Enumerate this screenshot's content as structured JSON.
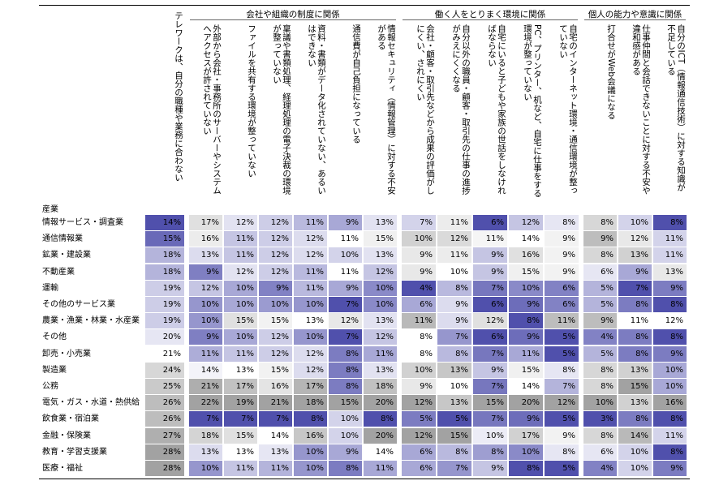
{
  "header": {
    "row_label": "産業",
    "first_column": "テレワークは、自分の職種や業務に合わない",
    "groups": [
      {
        "label": "会社や組織の制度に関係",
        "columns": [
          "外部から会社・事務所のサーバーやシステムへアクセスが許されていない",
          "ファイルを共有する環境が整っていない",
          "稟議や書類処理、経理処理の電子決裁の環境が整っていない",
          "資料・書類がデータ化されていない、あるいはできない",
          "通信費が自己負担になっている",
          "情報セキュリティ（情報管理）に対する不安がある"
        ]
      },
      {
        "label": "働く人をとりまく環境に関係",
        "columns": [
          "会社・顧客・取引先などから成果の評価がしにくい、されにくい",
          "自分以外の職員・顧客・取引先の仕事の進捗がみえにくくなる",
          "自宅にいると子どもや家族の世話をしなければならない",
          "PC、プリンター、机など、自宅に仕事をする環境が整っていない",
          "自宅のインターネット環境・通信環境が整っていない"
        ]
      },
      {
        "label": "個人の能力や意識に関係",
        "columns": [
          "打合せがWeb会議になる",
          "仕事仲間と会話できないことに対する不安や違和感がある",
          "自分のICT（情報通信技術）に対する知識が不足している"
        ]
      }
    ]
  },
  "color_scale": {
    "low": "#5050ac",
    "mid": "#ffffff",
    "high": "#a2a2a2"
  },
  "table": {
    "rows": [
      {
        "label": "情報サービス・調査業",
        "values": [
          14,
          17,
          12,
          12,
          11,
          9,
          13,
          7,
          11,
          6,
          12,
          8,
          8,
          10,
          8
        ],
        "value_labels": [
          "14%",
          "17%",
          "12%",
          "12%",
          "11%",
          "9%",
          "13%",
          "7%",
          "11%",
          "6%",
          "12%",
          "8%",
          "8%",
          "10%",
          "8%"
        ]
      },
      {
        "label": "通信情報業",
        "values": [
          15,
          16,
          11,
          12,
          12,
          11,
          15,
          10,
          12,
          11,
          14,
          9,
          9,
          12,
          11
        ],
        "value_labels": [
          "15%",
          "16%",
          "11%",
          "12%",
          "12%",
          "11%",
          "15%",
          "10%",
          "12%",
          "11%",
          "14%",
          "9%",
          "9%",
          "12%",
          "11%"
        ]
      },
      {
        "label": "鉱業・建設業",
        "values": [
          18,
          13,
          11,
          12,
          12,
          10,
          13,
          9,
          11,
          9,
          16,
          9,
          8,
          13,
          11
        ],
        "value_labels": [
          "18%",
          "13%",
          "11%",
          "12%",
          "12%",
          "10%",
          "13%",
          "9%",
          "11%",
          "9%",
          "16%",
          "9%",
          "8%",
          "13%",
          "11%"
        ]
      },
      {
        "label": "不動産業",
        "values": [
          18,
          9,
          12,
          12,
          11,
          11,
          12,
          9,
          10,
          9,
          15,
          9,
          6,
          9,
          13
        ],
        "value_labels": [
          "18%",
          "9%",
          "12%",
          "12%",
          "11%",
          "11%",
          "12%",
          "9%",
          "10%",
          "9%",
          "15%",
          "9%",
          "6%",
          "9%",
          "13%"
        ]
      },
      {
        "label": "運輸",
        "values": [
          19,
          12,
          10,
          9,
          11,
          9,
          10,
          4,
          8,
          7,
          10,
          6,
          5,
          7,
          9
        ],
        "value_labels": [
          "19%",
          "12%",
          "10%",
          "9%",
          "11%",
          "9%",
          "10%",
          "4%",
          "8%",
          "7%",
          "10%",
          "6%",
          "5%",
          "7%",
          "9%"
        ]
      },
      {
        "label": "その他のサービス業",
        "values": [
          19,
          10,
          10,
          10,
          10,
          7,
          10,
          6,
          9,
          6,
          9,
          6,
          5,
          8,
          8
        ],
        "value_labels": [
          "19%",
          "10%",
          "10%",
          "10%",
          "10%",
          "7%",
          "10%",
          "6%",
          "9%",
          "6%",
          "9%",
          "6%",
          "5%",
          "8%",
          "8%"
        ]
      },
      {
        "label": "農業・漁業・林業・水産業",
        "values": [
          19,
          10,
          15,
          15,
          13,
          12,
          13,
          11,
          9,
          12,
          8,
          11,
          9,
          11,
          12
        ],
        "value_labels": [
          "19%",
          "10%",
          "15%",
          "15%",
          "13%",
          "12%",
          "13%",
          "11%",
          "9%",
          "12%",
          "8%",
          "11%",
          "9%",
          "11%",
          "12%"
        ]
      },
      {
        "label": "その他",
        "values": [
          20,
          9,
          10,
          12,
          10,
          7,
          12,
          8,
          7,
          6,
          9,
          5,
          4,
          8,
          8
        ],
        "value_labels": [
          "20%",
          "9%",
          "10%",
          "12%",
          "10%",
          "7%",
          "12%",
          "8%",
          "7%",
          "6%",
          "9%",
          "5%",
          "4%",
          "8%",
          "8%"
        ]
      },
      {
        "label": "卸売・小売業",
        "values": [
          21,
          11,
          11,
          12,
          12,
          8,
          11,
          8,
          8,
          7,
          11,
          5,
          5,
          8,
          9
        ],
        "value_labels": [
          "21%",
          "11%",
          "11%",
          "12%",
          "12%",
          "8%",
          "11%",
          "8%",
          "8%",
          "7%",
          "11%",
          "5%",
          "5%",
          "8%",
          "9%"
        ]
      },
      {
        "label": "製造業",
        "values": [
          24,
          14,
          13,
          15,
          12,
          8,
          13,
          10,
          13,
          9,
          15,
          8,
          8,
          13,
          10
        ],
        "value_labels": [
          "24%",
          "14%",
          "13%",
          "15%",
          "12%",
          "8%",
          "13%",
          "10%",
          "13%",
          "9%",
          "15%",
          "8%",
          "8%",
          "13%",
          "10%"
        ]
      },
      {
        "label": "公務",
        "values": [
          25,
          21,
          17,
          16,
          17,
          8,
          18,
          9,
          10,
          7,
          14,
          7,
          8,
          15,
          10
        ],
        "value_labels": [
          "25%",
          "21%",
          "17%",
          "16%",
          "17%",
          "8%",
          "18%",
          "9%",
          "10%",
          "7%",
          "14%",
          "7%",
          "8%",
          "15%",
          "10%"
        ]
      },
      {
        "label": "電気・ガス・水道・熱供給",
        "values": [
          26,
          22,
          19,
          21,
          18,
          15,
          20,
          12,
          13,
          15,
          20,
          12,
          10,
          13,
          16
        ],
        "value_labels": [
          "26%",
          "22%",
          "19%",
          "21%",
          "18%",
          "15%",
          "20%",
          "12%",
          "13%",
          "15%",
          "20%",
          "12%",
          "10%",
          "13%",
          "16%"
        ]
      },
      {
        "label": "飲食業・宿泊業",
        "values": [
          26,
          7,
          7,
          7,
          8,
          10,
          8,
          5,
          5,
          7,
          9,
          5,
          3,
          8,
          8
        ],
        "value_labels": [
          "26%",
          "7%",
          "7%",
          "7%",
          "8%",
          "10%",
          "8%",
          "5%",
          "5%",
          "7%",
          "9%",
          "5%",
          "3%",
          "8%",
          "8%"
        ]
      },
      {
        "label": "金融・保険業",
        "values": [
          27,
          18,
          15,
          14,
          16,
          10,
          20,
          12,
          15,
          10,
          17,
          9,
          8,
          14,
          11
        ],
        "value_labels": [
          "27%",
          "18%",
          "15%",
          "14%",
          "16%",
          "10%",
          "20%",
          "12%",
          "15%",
          "10%",
          "17%",
          "9%",
          "8%",
          "14%",
          "11%"
        ]
      },
      {
        "label": "教育・学習支援業",
        "values": [
          28,
          13,
          13,
          13,
          10,
          9,
          14,
          6,
          8,
          8,
          10,
          8,
          6,
          10,
          8
        ],
        "value_labels": [
          "28%",
          "13%",
          "13%",
          "13%",
          "10%",
          "9%",
          "14%",
          "6%",
          "8%",
          "8%",
          "10%",
          "8%",
          "6%",
          "10%",
          "8%"
        ]
      },
      {
        "label": "医療・福祉",
        "values": [
          28,
          10,
          11,
          11,
          10,
          8,
          11,
          6,
          7,
          9,
          8,
          5,
          4,
          10,
          9
        ],
        "value_labels": [
          "28%",
          "10%",
          "11%",
          "11%",
          "10%",
          "8%",
          "11%",
          "6%",
          "7%",
          "9%",
          "8%",
          "5%",
          "4%",
          "10%",
          "9%"
        ]
      }
    ]
  }
}
